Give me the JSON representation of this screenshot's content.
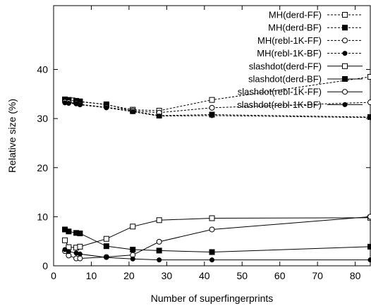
{
  "chart_data": {
    "type": "line",
    "title": "",
    "xlabel": "Number of superfingerprints",
    "ylabel": "Relative size (%)",
    "xlim": [
      0,
      84
    ],
    "ylim": [
      0,
      53
    ],
    "xticks": [
      0,
      10,
      20,
      30,
      40,
      50,
      60,
      70,
      80
    ],
    "yticks": [
      0,
      10,
      20,
      30,
      40
    ],
    "grid": false,
    "legend_position": "top-right",
    "series": [
      {
        "name": "MH(derd-FF)",
        "line": "dashed",
        "marker": "open-square",
        "x": [
          3,
          5,
          6,
          7,
          14,
          21,
          28,
          42,
          84
        ],
        "y": [
          33.9,
          33.7,
          33.6,
          33.5,
          32.8,
          31.8,
          31.6,
          33.8,
          38.5
        ]
      },
      {
        "name": "MH(derd-BF)",
        "line": "dashed",
        "marker": "filled-square",
        "x": [
          3,
          4,
          6,
          7,
          14,
          21,
          28,
          42,
          84
        ],
        "y": [
          33.9,
          33.8,
          33.5,
          33.4,
          32.9,
          31.5,
          30.6,
          30.8,
          30.3
        ]
      },
      {
        "name": "MH(rebl-1K-FF)",
        "line": "dashed",
        "marker": "open-circle",
        "x": [
          3,
          4,
          6,
          7,
          14,
          21,
          28,
          42,
          84
        ],
        "y": [
          33.4,
          33.3,
          33.1,
          32.9,
          32.3,
          31.6,
          31.2,
          32.2,
          33.3
        ]
      },
      {
        "name": "MH(rebl-1K-BF)",
        "line": "dashed",
        "marker": "filled-circle",
        "x": [
          3,
          4,
          6,
          7,
          14,
          21,
          28,
          42,
          84
        ],
        "y": [
          33.2,
          33.1,
          33.0,
          32.8,
          32.2,
          31.4,
          30.5,
          30.6,
          30.2
        ]
      },
      {
        "name": "slashdot(derd-FF)",
        "line": "solid",
        "marker": "open-square",
        "x": [
          3,
          4,
          6,
          7,
          14,
          21,
          28,
          42,
          84
        ],
        "y": [
          5.2,
          3.8,
          3.7,
          3.9,
          5.5,
          8.0,
          9.3,
          9.7,
          9.8
        ]
      },
      {
        "name": "slashdot(derd-BF)",
        "line": "solid",
        "marker": "filled-square",
        "x": [
          3,
          4,
          6,
          7,
          14,
          21,
          28,
          42,
          84
        ],
        "y": [
          7.4,
          7.0,
          6.7,
          6.6,
          4.0,
          3.3,
          3.1,
          2.8,
          3.9
        ]
      },
      {
        "name": "slashdot(rebl-1K-FF)",
        "line": "solid",
        "marker": "open-circle",
        "x": [
          3,
          4,
          6,
          7,
          14,
          21,
          28,
          42,
          84
        ],
        "y": [
          3.0,
          2.1,
          1.5,
          1.5,
          1.8,
          2.2,
          4.9,
          7.4,
          10.0
        ]
      },
      {
        "name": "slashdot(rebl-1K-BF)",
        "line": "solid",
        "marker": "filled-circle",
        "x": [
          3,
          4,
          6,
          7,
          14,
          21,
          28,
          42,
          84
        ],
        "y": [
          3.3,
          2.9,
          2.6,
          2.4,
          1.7,
          1.4,
          1.2,
          1.2,
          1.2
        ]
      }
    ]
  }
}
